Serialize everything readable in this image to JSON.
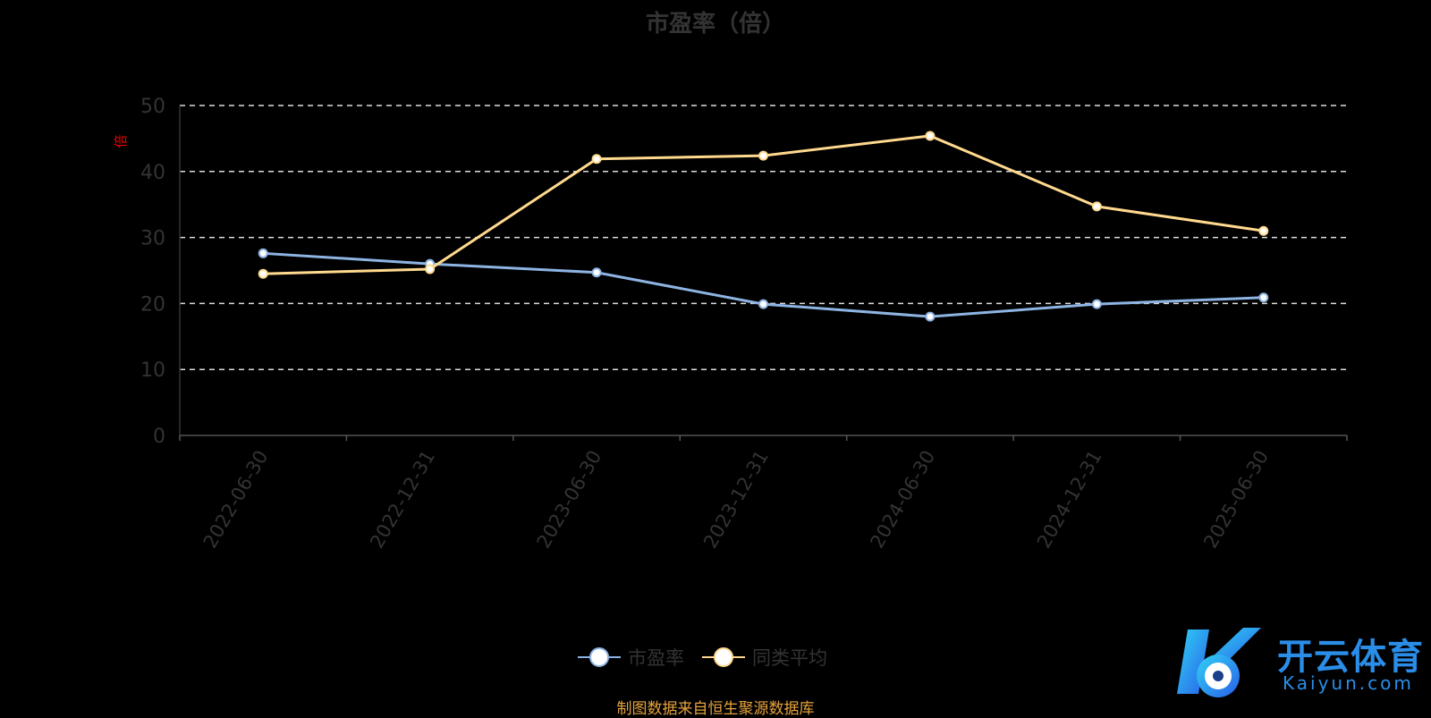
{
  "chart_data": {
    "type": "line",
    "title": "市盈率（倍）",
    "ylabel": "倍",
    "xlabel": "",
    "ylim": [
      0,
      50
    ],
    "yticks": [
      0,
      10,
      20,
      30,
      40,
      50
    ],
    "grid": true,
    "legend_position": "bottom",
    "categories": [
      "2022-06-30",
      "2022-12-31",
      "2023-06-30",
      "2023-12-31",
      "2024-06-30",
      "2024-12-31",
      "2025-06-30"
    ],
    "series": [
      {
        "name": "市盈率",
        "color": "#8eb4e3",
        "values": [
          27.6,
          26.0,
          24.7,
          19.9,
          18.0,
          19.9,
          20.9
        ]
      },
      {
        "name": "同类平均",
        "color": "#ffd98e",
        "values": [
          24.5,
          25.2,
          41.9,
          42.4,
          45.4,
          34.7,
          31.0
        ]
      }
    ]
  },
  "source": "制图数据来自恒生聚源数据库",
  "logo": {
    "name": "开云体育",
    "sub": "Kaiyun.com"
  }
}
